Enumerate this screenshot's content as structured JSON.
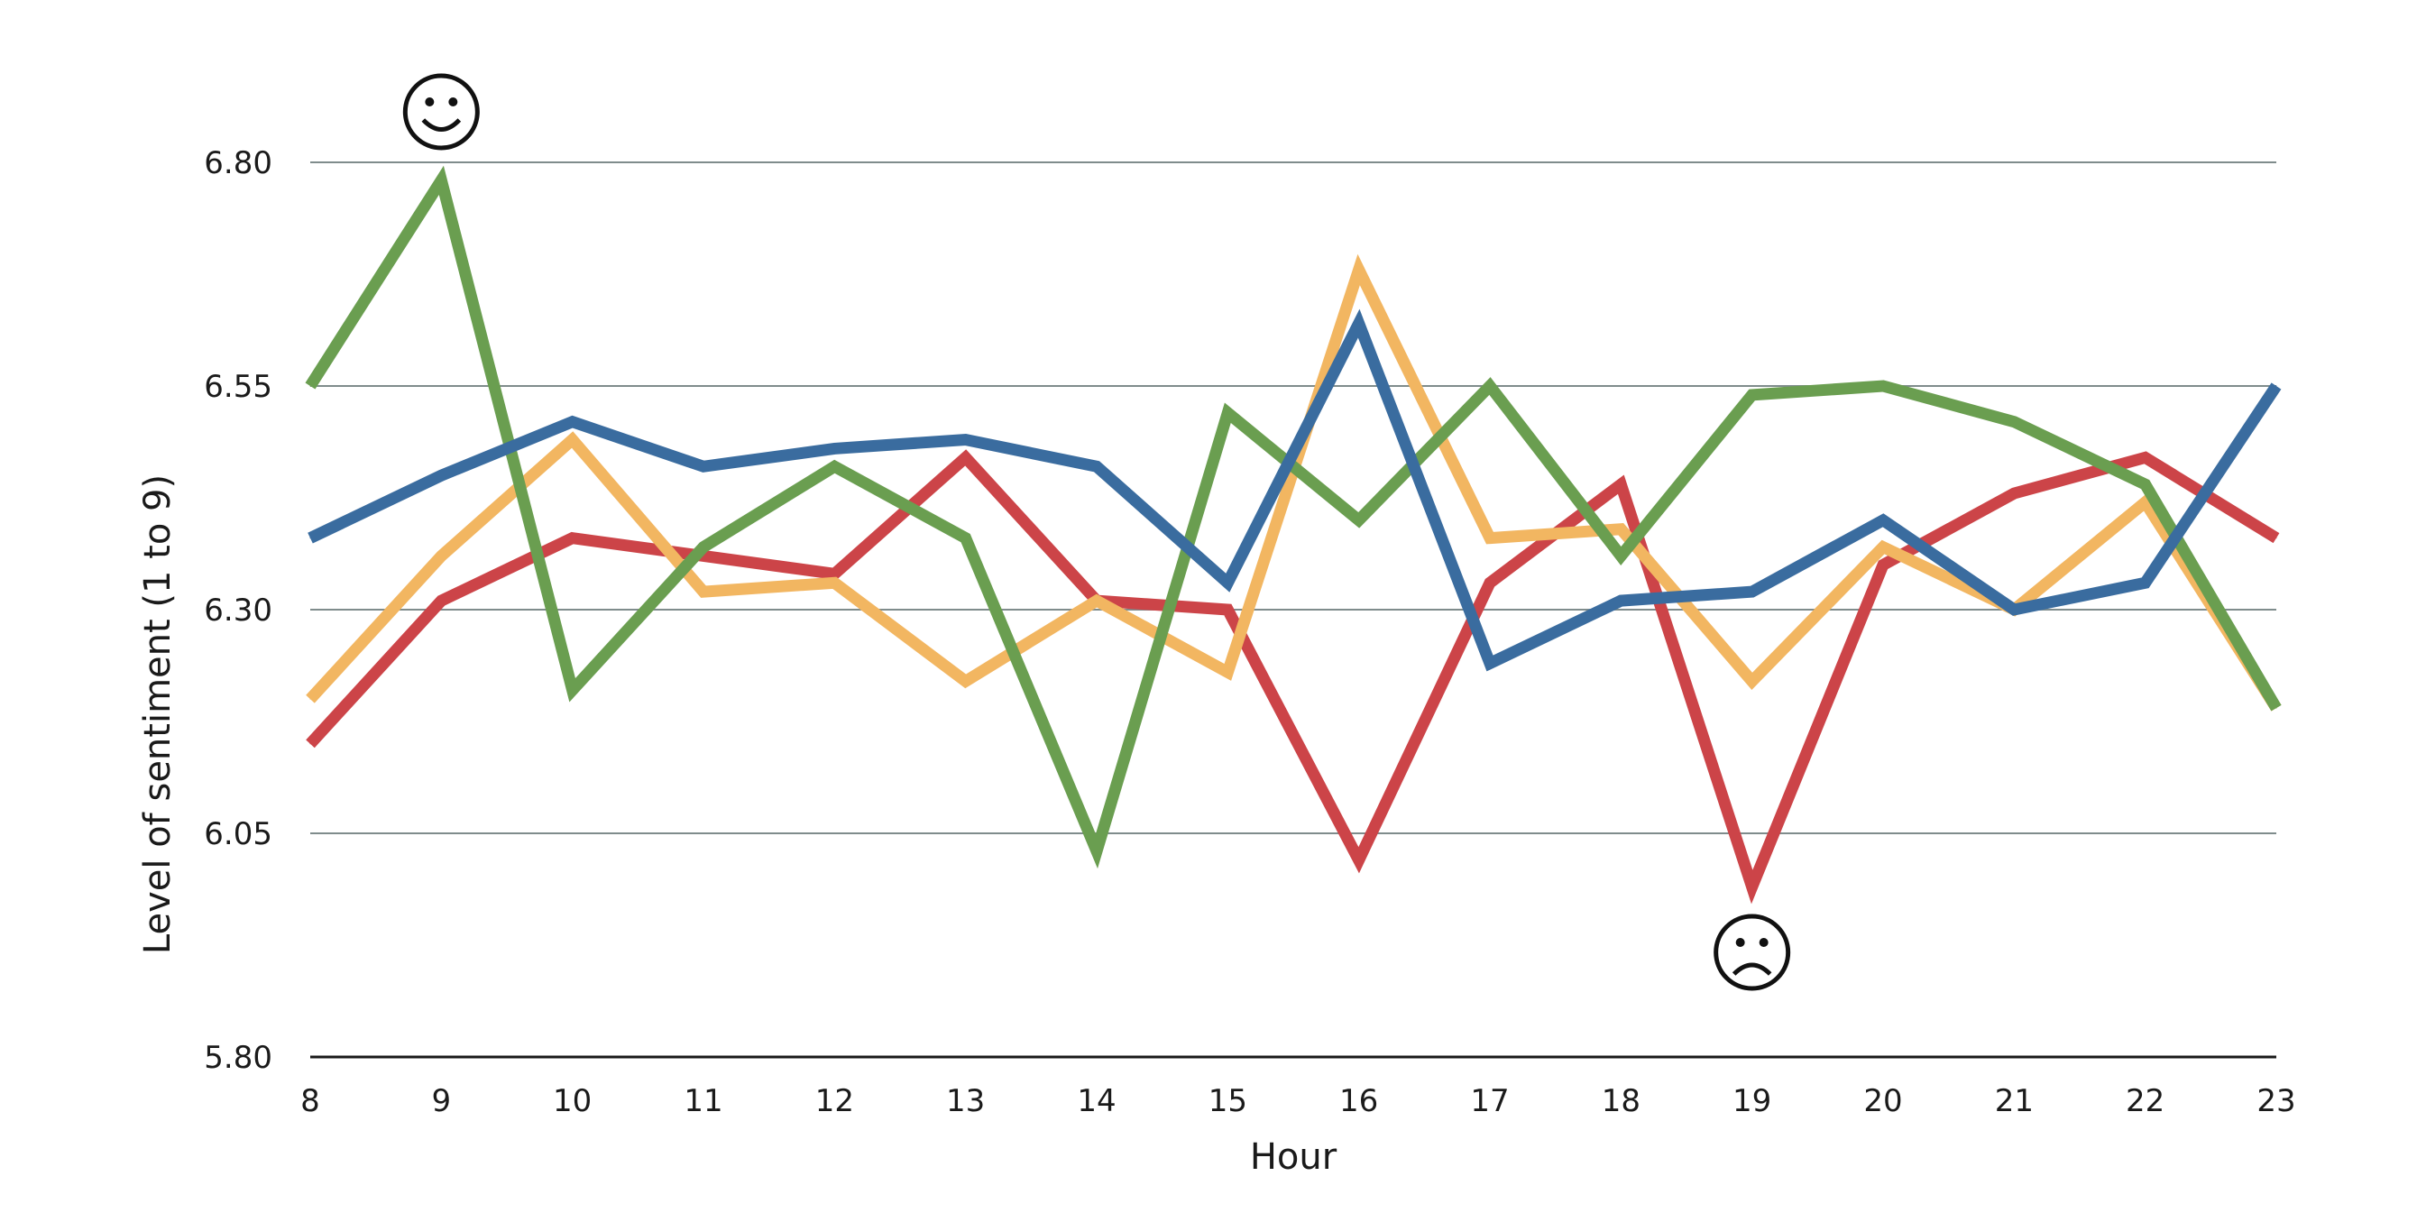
{
  "chart_data": {
    "type": "line",
    "title": "",
    "xlabel": "Hour",
    "ylabel": "Level of sentiment (1 to 9)",
    "x": [
      8,
      9,
      10,
      11,
      12,
      13,
      14,
      15,
      16,
      17,
      18,
      19,
      20,
      21,
      22,
      23
    ],
    "x_tick_labels": [
      "8",
      "9",
      "10",
      "11",
      "12",
      "13",
      "14",
      "15",
      "16",
      "17",
      "18",
      "19",
      "20",
      "21",
      "22",
      "23"
    ],
    "ylim": [
      5.8,
      6.8
    ],
    "y_ticks": [
      5.8,
      6.05,
      6.3,
      6.55,
      6.8
    ],
    "y_tick_labels": [
      "5.80",
      "6.05",
      "6.30",
      "6.55",
      "6.80"
    ],
    "grid": true,
    "legend": "none",
    "series": [
      {
        "color": "#cc4448",
        "values": [
          6.15,
          6.31,
          6.38,
          6.36,
          6.34,
          6.47,
          6.31,
          6.3,
          6.02,
          6.33,
          6.44,
          5.99,
          6.35,
          6.43,
          6.47,
          6.38
        ]
      },
      {
        "color": "#f2b661",
        "values": [
          6.2,
          6.36,
          6.49,
          6.32,
          6.33,
          6.22,
          6.31,
          6.23,
          6.68,
          6.38,
          6.39,
          6.22,
          6.37,
          6.3,
          6.42,
          6.19
        ]
      },
      {
        "color": "#6a9e50",
        "values": [
          6.55,
          6.78,
          6.21,
          6.37,
          6.46,
          6.38,
          6.03,
          6.52,
          6.4,
          6.55,
          6.36,
          6.54,
          6.55,
          6.51,
          6.44,
          6.19
        ]
      },
      {
        "color": "#3a6c9f",
        "values": [
          6.38,
          6.45,
          6.51,
          6.46,
          6.48,
          6.49,
          6.46,
          6.33,
          6.62,
          6.24,
          6.31,
          6.32,
          6.4,
          6.3,
          6.33,
          6.55
        ]
      }
    ],
    "annotations": [
      {
        "icon": "smiley-face-icon",
        "x": 9
      },
      {
        "icon": "frowny-face-icon",
        "x": 19
      }
    ]
  }
}
